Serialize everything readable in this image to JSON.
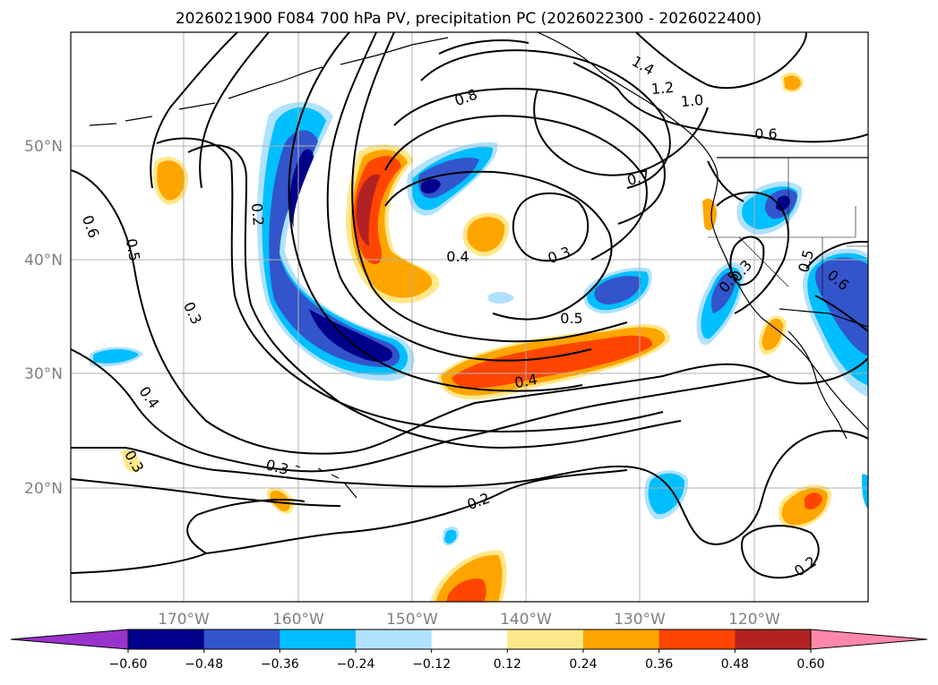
{
  "chart_data": {
    "type": "map",
    "title": "2026021900 F084 700 hPa PV, precipitation PC (2026022300 - 2026022400)",
    "lon_ticks": [
      "170°W",
      "160°W",
      "150°W",
      "140°W",
      "130°W",
      "120°W"
    ],
    "lat_ticks": [
      "50°N",
      "40°N",
      "30°N",
      "20°N"
    ],
    "lon_values": [
      -170,
      -160,
      -150,
      -140,
      -130,
      -120
    ],
    "lat_values": [
      50,
      40,
      30,
      20
    ],
    "lon_range": [
      -180,
      -110
    ],
    "lat_range": [
      10,
      60
    ],
    "grid": true,
    "colorbar": {
      "levels": [
        -0.6,
        -0.48,
        -0.36,
        -0.24,
        -0.12,
        0.12,
        0.24,
        0.36,
        0.48,
        0.6
      ],
      "tick_labels": [
        "−0.60",
        "−0.48",
        "−0.36",
        "−0.24",
        "−0.12",
        "0.12",
        "0.24",
        "0.36",
        "0.48",
        "0.60"
      ],
      "colors": [
        "#9933cc",
        "#00008b",
        "#3355cc",
        "#00bfff",
        "#b0e2ff",
        "#ffffff",
        "#ffe88a",
        "#ffa500",
        "#ff4500",
        "#b22222",
        "#ff88aa"
      ],
      "extend": "both"
    },
    "contour_labels": [
      "1.4",
      "1.2",
      "1.0",
      "0.8",
      "0.6",
      "0.7",
      "0.6",
      "0.5",
      "0.2",
      "0.5",
      "0.3",
      "0.4",
      "0.4",
      "0.3",
      "0.5",
      "0.4",
      "0.3",
      "0.3",
      "0.2",
      "0.2",
      "0.3",
      "0.5",
      "0.6"
    ]
  }
}
